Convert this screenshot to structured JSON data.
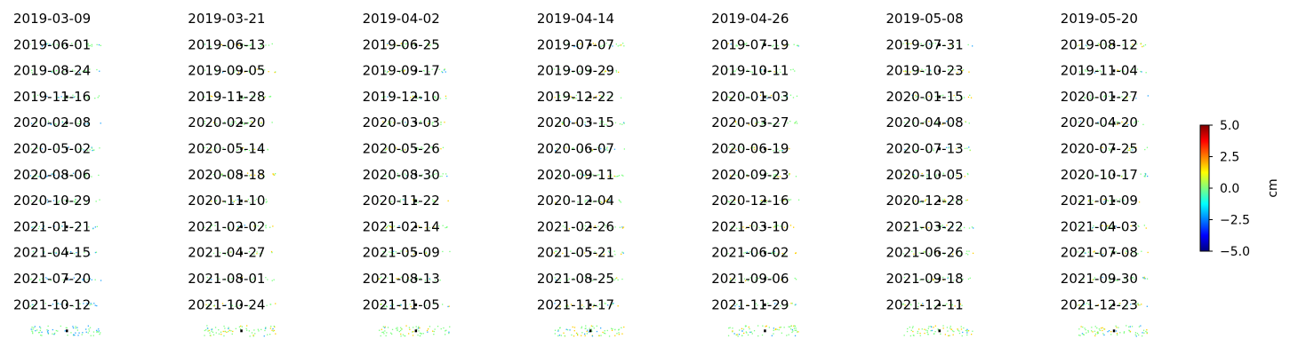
{
  "chart_data": {
    "type": "heatmap",
    "layout": {
      "columns": 7,
      "rows": 12
    },
    "dates": [
      "2019-03-09",
      "2019-03-21",
      "2019-04-02",
      "2019-04-14",
      "2019-04-26",
      "2019-05-08",
      "2019-05-20",
      "2019-06-01",
      "2019-06-13",
      "2019-06-25",
      "2019-07-07",
      "2019-07-19",
      "2019-07-31",
      "2019-08-12",
      "2019-08-24",
      "2019-09-05",
      "2019-09-17",
      "2019-09-29",
      "2019-10-11",
      "2019-10-23",
      "2019-11-04",
      "2019-11-16",
      "2019-11-28",
      "2019-12-10",
      "2019-12-22",
      "2020-01-03",
      "2020-01-15",
      "2020-01-27",
      "2020-02-08",
      "2020-02-20",
      "2020-03-03",
      "2020-03-15",
      "2020-03-27",
      "2020-04-08",
      "2020-04-20",
      "2020-05-02",
      "2020-05-14",
      "2020-05-26",
      "2020-06-07",
      "2020-06-19",
      "2020-07-13",
      "2020-07-25",
      "2020-08-06",
      "2020-08-18",
      "2020-08-30",
      "2020-09-11",
      "2020-09-23",
      "2020-10-05",
      "2020-10-17",
      "2020-10-29",
      "2020-11-10",
      "2020-11-22",
      "2020-12-04",
      "2020-12-16",
      "2020-12-28",
      "2021-01-09",
      "2021-01-21",
      "2021-02-02",
      "2021-02-14",
      "2021-02-26",
      "2021-03-10",
      "2021-03-22",
      "2021-04-03",
      "2021-04-15",
      "2021-04-27",
      "2021-05-09",
      "2021-05-21",
      "2021-06-02",
      "2021-06-26",
      "2021-07-08",
      "2021-07-20",
      "2021-08-01",
      "2021-08-13",
      "2021-08-25",
      "2021-09-06",
      "2021-09-18",
      "2021-09-30",
      "2021-10-12",
      "2021-10-24",
      "2021-11-05",
      "2021-11-17",
      "2021-11-29",
      "2021-12-11",
      "2021-12-23"
    ],
    "colorbar": {
      "label": "cm",
      "vmin": -5.0,
      "vmax": 5.0,
      "ticks": [
        5.0,
        2.5,
        0.0,
        -2.5,
        -5.0
      ],
      "tick_labels": [
        "5.0",
        "2.5",
        "0.0",
        "−2.5",
        "−5.0"
      ],
      "colormap": "jet",
      "colormap_stops": [
        "#00007f",
        "#0000ff",
        "#007fff",
        "#00ffff",
        "#7fff7f",
        "#ffff00",
        "#ff7f00",
        "#ff0000",
        "#7f0000"
      ]
    },
    "panel_colors": {
      "near_zero": "#7dff80",
      "positive": "#ffd000",
      "negative": "#2aa8ff",
      "reference_point": "#000000"
    }
  }
}
